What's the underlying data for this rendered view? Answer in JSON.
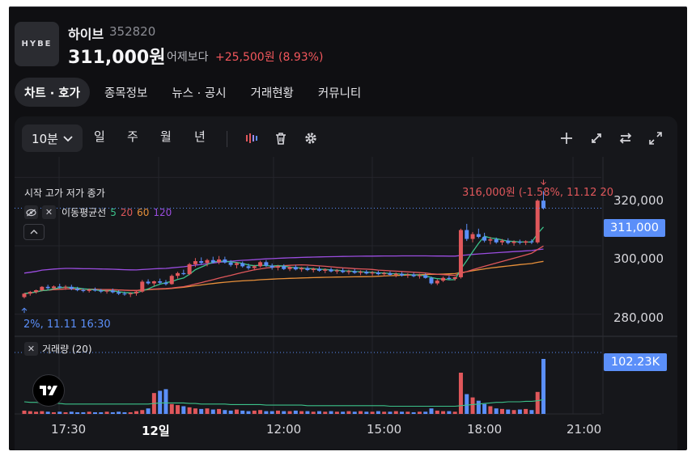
{
  "header": {
    "logo_text": "HYBE",
    "name": "하이브",
    "code": "352820",
    "price": "311,000원",
    "change_label": "어제보다",
    "change_value": "+25,500원 (8.93%)"
  },
  "tabs": [
    "차트 · 호가",
    "종목정보",
    "뉴스 · 공시",
    "거래현황",
    "커뮤니티"
  ],
  "toolbar": {
    "interval": "10분",
    "periods": [
      "일",
      "주",
      "월",
      "년"
    ],
    "icons": [
      "indicator-icon",
      "trash-icon",
      "gear-icon",
      "crosshair-icon",
      "expand-diagonal-icon",
      "compare-arrows-icon",
      "fullscreen-icon"
    ]
  },
  "legend": {
    "ohlc": "시작 고가 저가 종가",
    "ma_title": "이동평균선",
    "ma_periods": [
      {
        "label": "5",
        "color": "#3cc28a"
      },
      {
        "label": "20",
        "color": "#e0575b"
      },
      {
        "label": "60",
        "color": "#e8903a"
      },
      {
        "label": "120",
        "color": "#9b4de0"
      }
    ],
    "volume_title": "거래량 (20)"
  },
  "annotations": {
    "high": "316,000원 (-1.58%, 11.12 20",
    "low": "2%, 11.11 16:30"
  },
  "price_axis": [
    "320,000",
    "300,000",
    "280,000"
  ],
  "current_price_tag": "311,000",
  "volume_tag": "102.23K",
  "time_axis": [
    {
      "label": "17:30",
      "bold": false
    },
    {
      "label": "12일",
      "bold": true
    },
    {
      "label": "12:00",
      "bold": false
    },
    {
      "label": "15:00",
      "bold": false
    },
    {
      "label": "18:00",
      "bold": false
    },
    {
      "label": "21:00",
      "bold": false
    }
  ],
  "colors": {
    "up": "#e0575b",
    "down": "#5b8ff9",
    "ma5": "#3cc28a",
    "ma20": "#e0575b",
    "ma60": "#e8903a",
    "ma120": "#9b4de0",
    "accent": "#5b8ff9"
  },
  "chart_data": {
    "type": "candlestick",
    "y_range": [
      274000,
      326000
    ],
    "ticks": [
      320000,
      300000,
      280000
    ],
    "candles": [
      [
        285.0,
        286.2,
        284.6,
        286.0
      ],
      [
        286.0,
        286.8,
        285.4,
        286.5
      ],
      [
        286.5,
        287.2,
        286.0,
        287.0
      ],
      [
        287.0,
        288.2,
        286.8,
        288.0
      ],
      [
        288.0,
        288.6,
        287.2,
        287.6
      ],
      [
        287.6,
        288.4,
        287.0,
        288.1
      ],
      [
        288.1,
        288.9,
        287.5,
        287.8
      ],
      [
        287.8,
        288.5,
        287.1,
        288.0
      ],
      [
        288.0,
        288.6,
        287.0,
        287.4
      ],
      [
        287.4,
        288.0,
        286.7,
        287.0
      ],
      [
        287.0,
        287.6,
        286.4,
        286.8
      ],
      [
        286.8,
        287.5,
        286.3,
        287.2
      ],
      [
        287.2,
        287.8,
        286.6,
        286.9
      ],
      [
        286.9,
        287.4,
        286.2,
        286.6
      ],
      [
        286.6,
        287.3,
        286.0,
        286.9
      ],
      [
        286.9,
        287.5,
        286.1,
        286.4
      ],
      [
        286.4,
        287.0,
        285.6,
        286.0
      ],
      [
        286.0,
        286.6,
        285.4,
        285.8
      ],
      [
        285.8,
        286.4,
        285.0,
        286.1
      ],
      [
        286.1,
        287.0,
        285.4,
        286.6
      ],
      [
        286.6,
        290.0,
        286.3,
        289.5
      ],
      [
        289.5,
        290.2,
        288.6,
        289.0
      ],
      [
        289.0,
        289.8,
        288.2,
        289.6
      ],
      [
        289.6,
        290.4,
        288.8,
        289.2
      ],
      [
        289.2,
        290.0,
        288.4,
        288.8
      ],
      [
        288.8,
        291.6,
        288.6,
        291.2
      ],
      [
        291.2,
        292.4,
        290.4,
        292.0
      ],
      [
        292.0,
        293.0,
        291.4,
        291.7
      ],
      [
        291.7,
        295.0,
        291.4,
        294.6
      ],
      [
        294.6,
        296.4,
        293.8,
        295.5
      ],
      [
        295.5,
        296.6,
        294.4,
        295.0
      ],
      [
        295.0,
        296.2,
        294.0,
        295.8
      ],
      [
        295.8,
        296.8,
        294.8,
        295.2
      ],
      [
        295.2,
        297.0,
        294.6,
        296.0
      ],
      [
        296.0,
        296.8,
        294.8,
        295.1
      ],
      [
        295.1,
        295.8,
        293.9,
        294.4
      ],
      [
        294.4,
        295.2,
        293.4,
        294.9
      ],
      [
        294.9,
        295.4,
        293.6,
        294.0
      ],
      [
        294.0,
        294.8,
        293.0,
        293.5
      ],
      [
        293.5,
        294.4,
        292.8,
        294.0
      ],
      [
        294.0,
        295.6,
        293.6,
        295.2
      ],
      [
        295.2,
        295.8,
        293.8,
        294.2
      ],
      [
        294.2,
        294.8,
        293.0,
        293.6
      ],
      [
        293.6,
        294.4,
        292.8,
        294.0
      ],
      [
        294.0,
        294.6,
        292.9,
        293.2
      ],
      [
        293.2,
        294.0,
        292.6,
        293.8
      ],
      [
        293.8,
        294.4,
        292.8,
        293.1
      ],
      [
        293.1,
        293.8,
        292.4,
        293.5
      ],
      [
        293.5,
        294.0,
        292.6,
        292.9
      ],
      [
        292.9,
        293.6,
        292.2,
        293.3
      ],
      [
        293.3,
        293.9,
        292.4,
        292.7
      ],
      [
        292.7,
        293.4,
        292.0,
        293.1
      ],
      [
        293.1,
        293.6,
        292.2,
        292.5
      ],
      [
        292.5,
        293.2,
        291.8,
        292.8
      ],
      [
        292.8,
        293.4,
        292.0,
        292.3
      ],
      [
        292.3,
        293.0,
        291.6,
        292.6
      ],
      [
        292.6,
        293.2,
        291.8,
        292.1
      ],
      [
        292.1,
        292.8,
        291.4,
        292.4
      ],
      [
        292.4,
        292.9,
        291.6,
        291.9
      ],
      [
        291.9,
        292.6,
        291.2,
        292.2
      ],
      [
        292.2,
        292.7,
        291.4,
        291.7
      ],
      [
        291.7,
        292.4,
        291.0,
        292.0
      ],
      [
        292.0,
        292.5,
        291.2,
        291.5
      ],
      [
        291.5,
        292.2,
        290.8,
        291.8
      ],
      [
        291.8,
        292.3,
        291.0,
        291.3
      ],
      [
        291.3,
        292.0,
        290.6,
        291.6
      ],
      [
        291.6,
        292.1,
        290.8,
        291.1
      ],
      [
        291.1,
        291.8,
        290.4,
        291.4
      ],
      [
        291.4,
        291.9,
        290.4,
        290.6
      ],
      [
        290.6,
        291.0,
        288.6,
        289.0
      ],
      [
        289.0,
        290.2,
        288.5,
        289.8
      ],
      [
        289.8,
        291.0,
        289.4,
        290.6
      ],
      [
        290.6,
        291.2,
        290.0,
        290.3
      ],
      [
        290.3,
        291.0,
        289.8,
        290.8
      ],
      [
        290.8,
        305.0,
        290.4,
        304.6
      ],
      [
        304.6,
        306.4,
        301.4,
        302.0
      ],
      [
        302.0,
        304.0,
        301.0,
        303.4
      ],
      [
        303.4,
        305.0,
        302.2,
        302.6
      ],
      [
        302.6,
        303.8,
        301.0,
        301.5
      ],
      [
        301.5,
        302.6,
        300.4,
        301.9
      ],
      [
        301.9,
        302.4,
        300.6,
        301.0
      ],
      [
        301.0,
        302.0,
        300.2,
        301.5
      ],
      [
        301.5,
        302.2,
        300.4,
        300.8
      ],
      [
        300.8,
        301.6,
        300.0,
        301.2
      ],
      [
        301.2,
        301.8,
        300.4,
        300.9
      ],
      [
        300.9,
        301.6,
        300.2,
        301.3
      ],
      [
        301.3,
        301.9,
        300.5,
        301.0
      ],
      [
        301.0,
        313.6,
        300.6,
        313.2
      ],
      [
        313.2,
        316.0,
        310.6,
        311.0
      ]
    ],
    "volume_scale": 102230,
    "volumes": [
      6,
      5,
      4,
      5,
      4,
      3,
      4,
      3,
      4,
      3,
      3,
      4,
      3,
      3,
      4,
      3,
      4,
      3,
      3,
      5,
      7,
      10,
      38,
      42,
      45,
      18,
      16,
      14,
      12,
      10,
      9,
      10,
      8,
      9,
      7,
      6,
      8,
      6,
      5,
      6,
      7,
      5,
      5,
      6,
      5,
      5,
      6,
      5,
      5,
      4,
      5,
      4,
      5,
      4,
      4,
      5,
      4,
      5,
      4,
      4,
      5,
      4,
      4,
      5,
      4,
      4,
      3,
      4,
      4,
      10,
      6,
      5,
      5,
      4,
      75,
      36,
      30,
      24,
      18,
      14,
      10,
      9,
      8,
      7,
      8,
      9,
      7,
      40,
      100
    ],
    "volume_ma": [
      22,
      21,
      21,
      20,
      20,
      19,
      19,
      18,
      18,
      18,
      18,
      18,
      18,
      18,
      18,
      18,
      18,
      18,
      18,
      18,
      18,
      18,
      19,
      20,
      20,
      20,
      20,
      20,
      19,
      19,
      18,
      18,
      18,
      18,
      18,
      17,
      17,
      17,
      17,
      17,
      17,
      16,
      16,
      16,
      16,
      16,
      16,
      16,
      15,
      15,
      15,
      15,
      15,
      15,
      15,
      15,
      15,
      15,
      15,
      15,
      15,
      15,
      14,
      14,
      14,
      14,
      14,
      14,
      14,
      14,
      14,
      14,
      14,
      14,
      15,
      16,
      17,
      18,
      19,
      20,
      21,
      21,
      22,
      22,
      22,
      23,
      23,
      24,
      26
    ]
  }
}
